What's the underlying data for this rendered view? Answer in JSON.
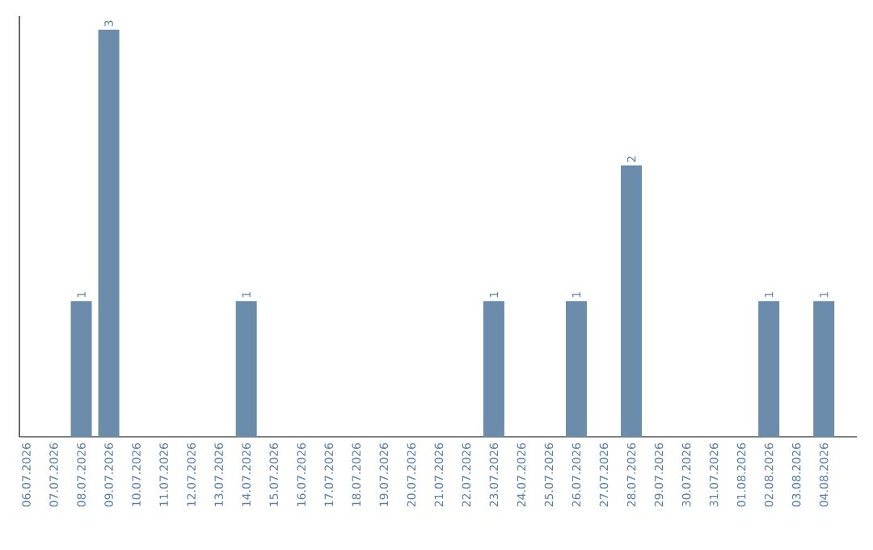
{
  "chart_data": {
    "type": "bar",
    "categories": [
      "06.07.2026",
      "07.07.2026",
      "08.07.2026",
      "09.07.2026",
      "10.07.2026",
      "11.07.2026",
      "12.07.2026",
      "13.07.2026",
      "14.07.2026",
      "15.07.2026",
      "16.07.2026",
      "17.07.2026",
      "18.07.2026",
      "19.07.2026",
      "20.07.2026",
      "21.07.2026",
      "22.07.2026",
      "23.07.2026",
      "24.07.2026",
      "25.07.2026",
      "26.07.2026",
      "27.07.2026",
      "28.07.2026",
      "29.07.2026",
      "30.07.2026",
      "31.07.2026",
      "01.08.2026",
      "02.08.2026",
      "03.08.2026",
      "04.08.2026"
    ],
    "values": [
      0,
      0,
      1,
      3,
      0,
      0,
      0,
      0,
      1,
      0,
      0,
      0,
      0,
      0,
      0,
      0,
      0,
      1,
      0,
      0,
      1,
      0,
      2,
      0,
      0,
      0,
      0,
      1,
      0,
      1
    ],
    "value_labels": [
      null,
      null,
      "1",
      "3",
      null,
      null,
      null,
      null,
      "1",
      null,
      null,
      null,
      null,
      null,
      null,
      null,
      null,
      "1",
      null,
      null,
      "1",
      null,
      "2",
      null,
      null,
      null,
      null,
      "1",
      null,
      "1"
    ],
    "color": "#6b8cab",
    "ylim": [
      0,
      3.1
    ],
    "tick_labels": "x"
  }
}
